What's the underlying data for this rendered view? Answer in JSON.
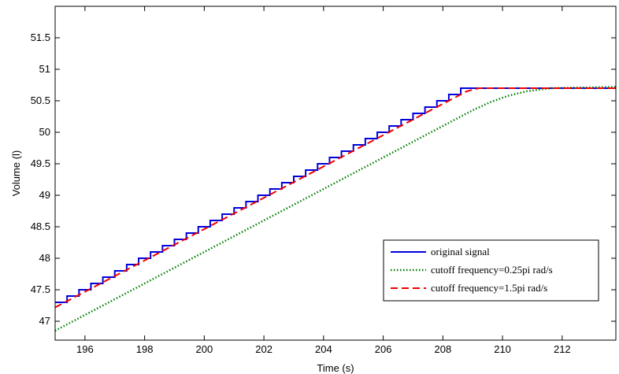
{
  "chart_data": {
    "type": "line",
    "title": "",
    "xlabel": "Time (s)",
    "ylabel": "Volume (l)",
    "xlim": [
      195,
      213.8
    ],
    "ylim": [
      46.7,
      52
    ],
    "x_ticks": [
      196,
      198,
      200,
      202,
      204,
      206,
      208,
      210,
      212
    ],
    "y_ticks": [
      47,
      47.5,
      48,
      48.5,
      49,
      49.5,
      50,
      50.5,
      51,
      51.5
    ],
    "x_tick_labels": [
      "196",
      "198",
      "200",
      "202",
      "204",
      "206",
      "208",
      "210",
      "212"
    ],
    "y_tick_labels": [
      "47",
      "47.5",
      "48",
      "48.5",
      "49",
      "49.5",
      "50",
      "50.5",
      "51",
      "51.5"
    ],
    "grid": false,
    "legend_position": "lower-right",
    "series": [
      {
        "name": "original signal",
        "style": "solid-stepped",
        "color": "#0000dd",
        "step_width": 0.4,
        "step_height": 0.1,
        "points": [
          [
            195.0,
            47.3
          ],
          [
            208.6,
            50.7
          ],
          [
            213.8,
            50.7
          ]
        ]
      },
      {
        "name": "cutoff frequency=0.25pi rad/s",
        "style": "dotted",
        "color": "#007f00",
        "points": [
          [
            195.0,
            46.85
          ],
          [
            209.0,
            50.35
          ],
          [
            209.6,
            50.48
          ],
          [
            210.2,
            50.58
          ],
          [
            210.8,
            50.65
          ],
          [
            211.6,
            50.7
          ],
          [
            213.8,
            50.72
          ]
        ]
      },
      {
        "name": "cutoff frequency=1.5pi rad/s",
        "style": "dashed",
        "color": "#ee0000",
        "points": [
          [
            195.0,
            47.22
          ],
          [
            208.8,
            50.65
          ],
          [
            209.2,
            50.7
          ],
          [
            213.8,
            50.7
          ]
        ]
      }
    ]
  }
}
